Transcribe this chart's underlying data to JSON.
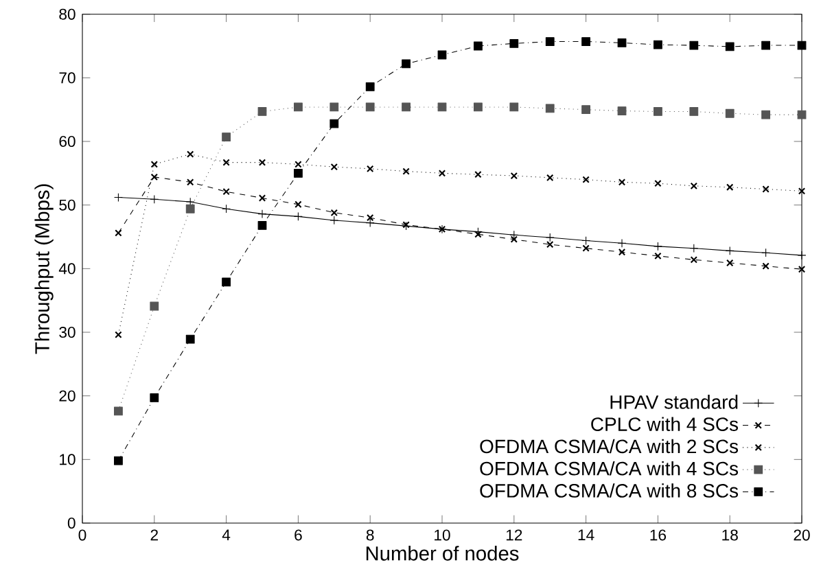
{
  "chart_data": {
    "type": "line",
    "xlabel": "Number of nodes",
    "ylabel": "Throughput (Mbps)",
    "x": [
      1,
      2,
      3,
      4,
      5,
      6,
      7,
      8,
      9,
      10,
      11,
      12,
      13,
      14,
      15,
      16,
      17,
      18,
      19,
      20
    ],
    "xlim": [
      0,
      20
    ],
    "xticks": [
      0,
      2,
      4,
      6,
      8,
      10,
      12,
      14,
      16,
      18,
      20
    ],
    "ylim": [
      0,
      80
    ],
    "yticks": [
      0,
      10,
      20,
      30,
      40,
      50,
      60,
      70,
      80
    ],
    "grid": false,
    "legend": "bottom right",
    "series": [
      {
        "name": "HPAV standard",
        "color": "#000000",
        "marker": "plus",
        "line_style": "solid",
        "values": [
          51.2,
          50.9,
          50.5,
          49.4,
          48.6,
          48.2,
          47.6,
          47.2,
          46.7,
          46.2,
          45.8,
          45.3,
          44.9,
          44.4,
          44.0,
          43.5,
          43.2,
          42.8,
          42.5,
          42.1
        ]
      },
      {
        "name": "CPLC with 4 SCs",
        "color": "#000000",
        "marker": "cross",
        "line_style": "dashed",
        "values": [
          45.6,
          54.4,
          53.6,
          52.1,
          51.1,
          50.1,
          48.8,
          48.0,
          46.9,
          46.2,
          45.4,
          44.6,
          43.8,
          43.2,
          42.6,
          42.0,
          41.4,
          40.9,
          40.4,
          39.9
        ]
      },
      {
        "name": "OFDMA CSMA/CA with 2 SCs",
        "color": "#000000",
        "marker": "cross",
        "line_style": "dotted",
        "values": [
          29.6,
          56.4,
          58.0,
          56.7,
          56.7,
          56.4,
          56.0,
          55.7,
          55.3,
          55.0,
          54.8,
          54.6,
          54.3,
          54.0,
          53.6,
          53.4,
          53.0,
          52.8,
          52.5,
          52.2
        ]
      },
      {
        "name": "OFDMA CSMA/CA with 4 SCs",
        "color": "#555555",
        "marker": "square",
        "line_style": "dotted",
        "values": [
          17.6,
          34.1,
          49.4,
          60.7,
          64.7,
          65.4,
          65.4,
          65.4,
          65.4,
          65.4,
          65.4,
          65.4,
          65.2,
          65.0,
          64.8,
          64.7,
          64.7,
          64.4,
          64.2,
          64.2
        ]
      },
      {
        "name": "OFDMA CSMA/CA with 8 SCs",
        "color": "#000000",
        "marker": "square",
        "line_style": "dashdotted",
        "values": [
          9.8,
          19.7,
          28.9,
          37.9,
          46.8,
          55.0,
          62.8,
          68.6,
          72.2,
          73.6,
          75.0,
          75.4,
          75.7,
          75.7,
          75.5,
          75.2,
          75.1,
          74.9,
          75.1,
          75.1
        ]
      }
    ]
  }
}
